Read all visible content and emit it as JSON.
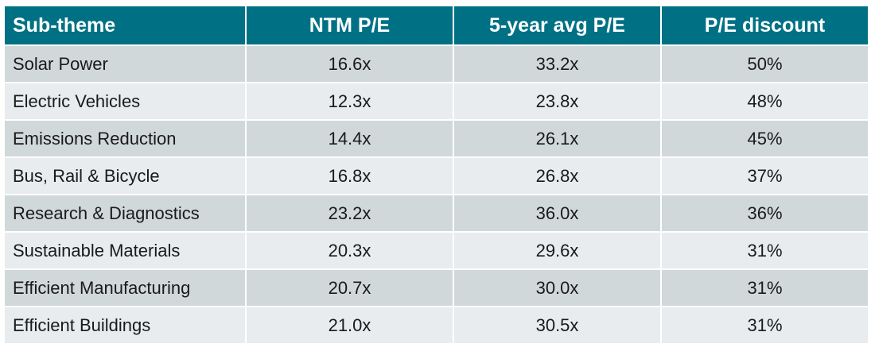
{
  "chart_data": {
    "type": "table",
    "columns": [
      "Sub-theme",
      "NTM P/E",
      "5-year avg P/E",
      "P/E discount"
    ],
    "rows": [
      [
        "Solar Power",
        "16.6x",
        "33.2x",
        "50%"
      ],
      [
        "Electric Vehicles",
        "12.3x",
        "23.8x",
        "48%"
      ],
      [
        "Emissions Reduction",
        "14.4x",
        "26.1x",
        "45%"
      ],
      [
        "Bus, Rail & Bicycle",
        "16.8x",
        "26.8x",
        "37%"
      ],
      [
        "Research & Diagnostics",
        "23.2x",
        "36.0x",
        "36%"
      ],
      [
        "Sustainable Materials",
        "20.3x",
        "29.6x",
        "31%"
      ],
      [
        "Efficient Manufacturing",
        "20.7x",
        "30.0x",
        "31%"
      ],
      [
        "Efficient Buildings",
        "21.0x",
        "30.5x",
        "31%"
      ]
    ],
    "colors": {
      "header_bg": "#007184",
      "header_text": "#ffffff",
      "row_odd_bg": "#d0d8da",
      "row_even_bg": "#e8ecee",
      "cell_text": "#1a1a1a"
    }
  }
}
